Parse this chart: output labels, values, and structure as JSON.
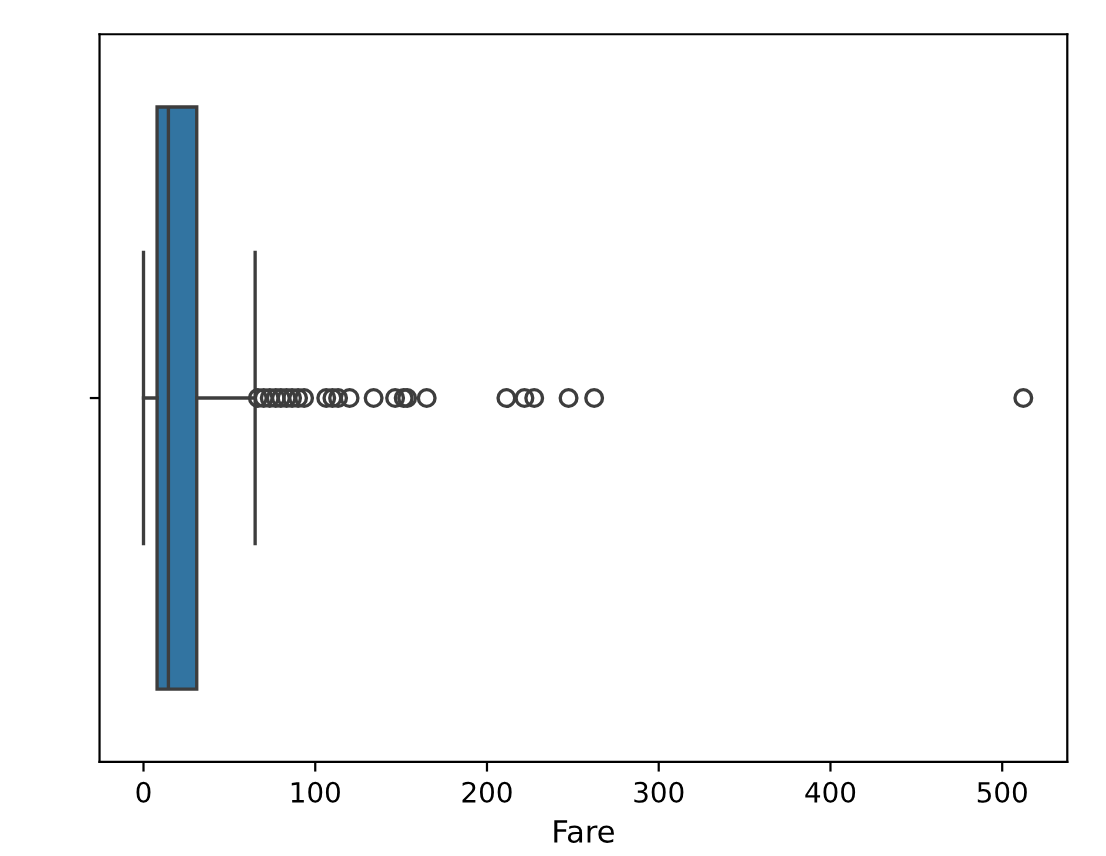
{
  "chart_data": {
    "type": "box",
    "orientation": "horizontal",
    "categories": [
      null
    ],
    "xlabel": "Fare",
    "color": "#3274a1",
    "boxes": [
      {
        "low": 0,
        "q1": 7.9,
        "median": 14.5,
        "q3": 31,
        "high": 65,
        "outliers": [
          66.6,
          70,
          73.5,
          77,
          80,
          83.3,
          86.5,
          90,
          93.5,
          106.4,
          110,
          113.3,
          120,
          134,
          146.5,
          151.5,
          153.5,
          164.9,
          211.3,
          221.8,
          227.5,
          247.5,
          262.4,
          512.3
        ]
      }
    ],
    "xlim": [
      -25.6,
      537.9
    ],
    "xticks": [
      0,
      100,
      200,
      300,
      400,
      500
    ],
    "tick_labels": "x",
    "grid": false
  }
}
